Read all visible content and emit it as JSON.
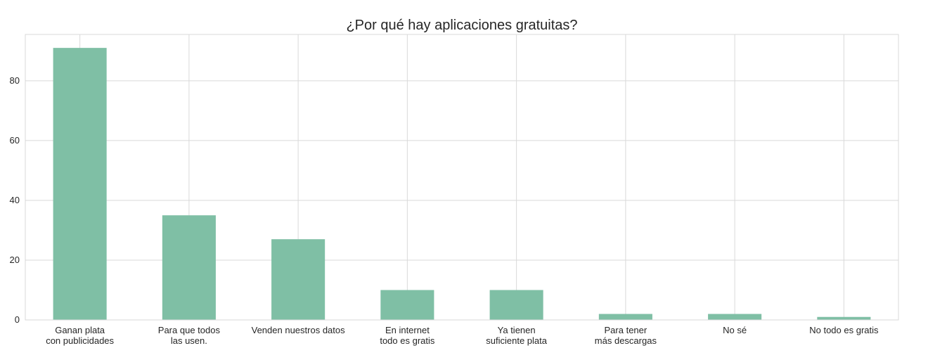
{
  "chart_data": {
    "type": "bar",
    "title": "¿Por qué hay aplicaciones gratuitas?",
    "xlabel": "",
    "ylabel": "",
    "categories": [
      [
        "Ganan plata",
        "con publicidades"
      ],
      [
        "Para que todos",
        "las usen."
      ],
      [
        "Venden nuestros datos"
      ],
      [
        "En internet",
        "todo es gratis"
      ],
      [
        "Ya tienen",
        "suficiente plata"
      ],
      [
        "Para tener",
        "más descargas"
      ],
      [
        "No sé"
      ],
      [
        "No todo es gratis"
      ]
    ],
    "values": [
      91,
      35,
      27,
      10,
      10,
      2,
      2,
      1
    ],
    "ylim": [
      0,
      95.5
    ],
    "yticks": [
      0,
      20,
      40,
      60,
      80
    ],
    "grid": true,
    "bar_color": "#7fbfa5",
    "grid_color": "#d9d9d9"
  }
}
